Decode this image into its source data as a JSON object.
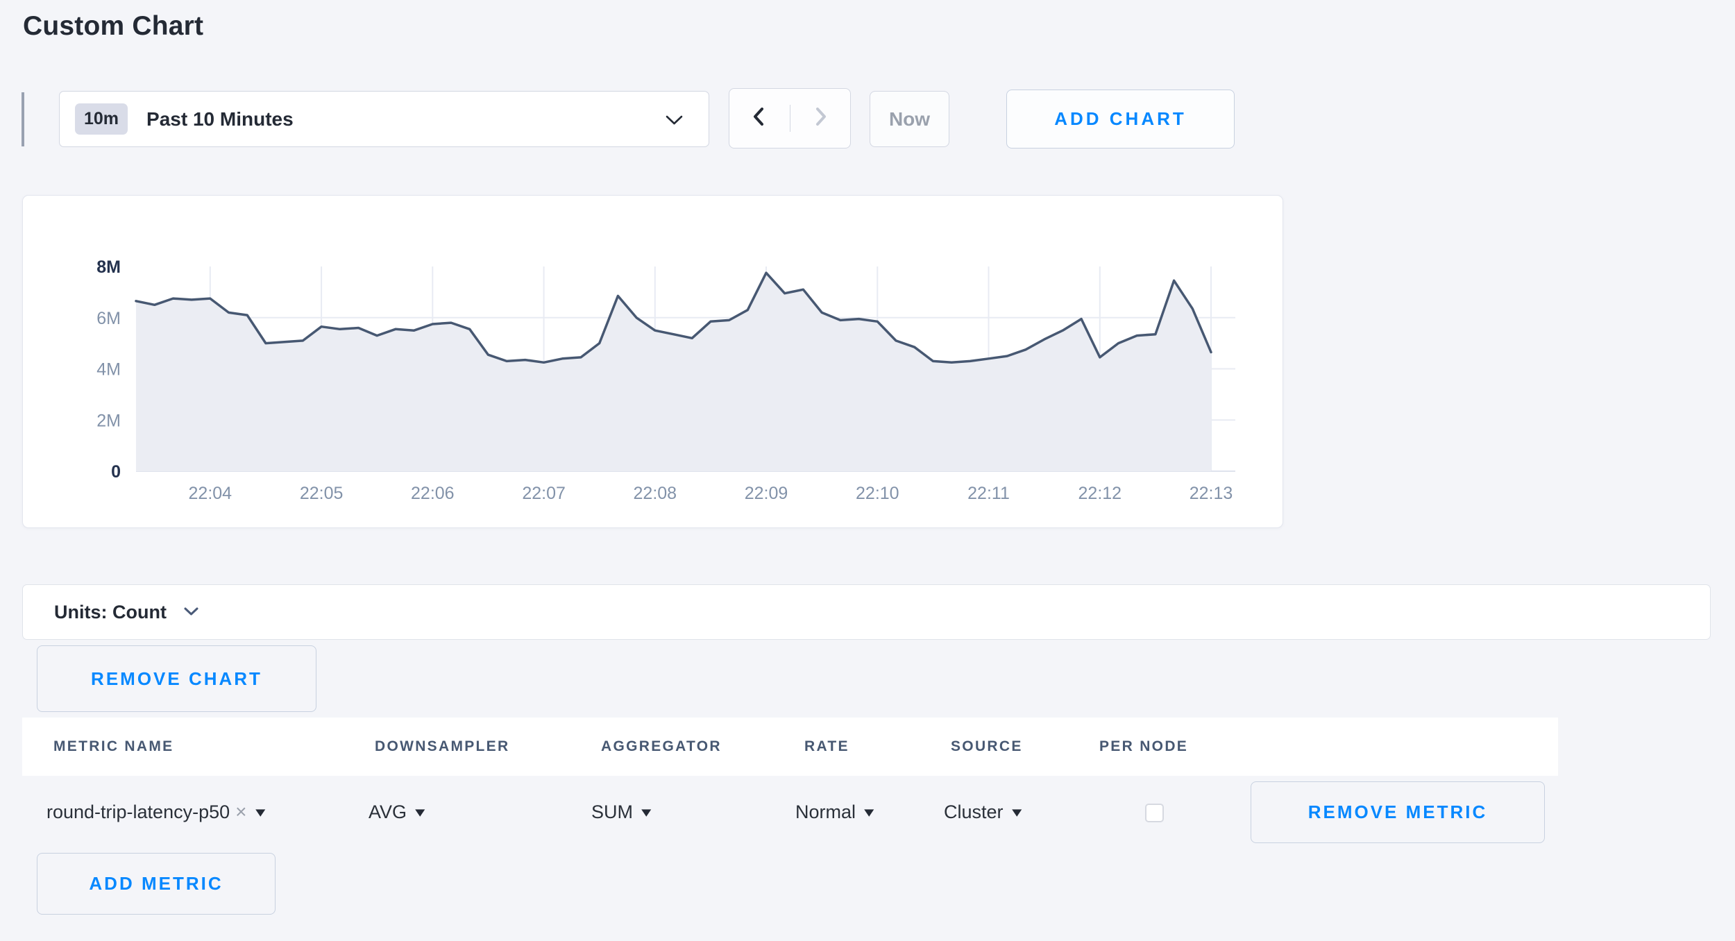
{
  "page": {
    "title": "Custom Chart",
    "background": "#f4f5f9",
    "accent_blue": "#0788ff"
  },
  "toolbar": {
    "time_scale": {
      "badge": "10m",
      "label": "Past 10 Minutes"
    },
    "now_label": "Now",
    "add_chart_label": "ADD CHART"
  },
  "units_bar": {
    "label": "Units: Count"
  },
  "chart_actions": {
    "remove_chart_label": "REMOVE CHART",
    "add_metric_label": "ADD METRIC"
  },
  "chart_data": {
    "type": "area",
    "title": "",
    "ylabel": "count",
    "ylim_millions": [
      0,
      8
    ],
    "grid": true,
    "x_domain_seconds_after_22h": [
      200,
      780
    ],
    "x_interval_seconds": 10,
    "x_ticks": [
      {
        "label": "22:04",
        "t": 240
      },
      {
        "label": "22:05",
        "t": 300
      },
      {
        "label": "22:06",
        "t": 360
      },
      {
        "label": "22:07",
        "t": 420
      },
      {
        "label": "22:08",
        "t": 480
      },
      {
        "label": "22:09",
        "t": 540
      },
      {
        "label": "22:10",
        "t": 600
      },
      {
        "label": "22:11",
        "t": 660
      },
      {
        "label": "22:12",
        "t": 720
      },
      {
        "label": "22:13",
        "t": 780
      }
    ],
    "y_ticks": [
      {
        "label": "0",
        "m": 0,
        "em": true
      },
      {
        "label": "2M",
        "m": 2
      },
      {
        "label": "4M",
        "m": 4
      },
      {
        "label": "6M",
        "m": 6
      },
      {
        "label": "8M",
        "m": 8,
        "em": true
      }
    ],
    "series": [
      {
        "name": "round-trip-latency-p50",
        "values_millions": [
          6.65,
          6.5,
          6.75,
          6.7,
          6.75,
          6.2,
          6.1,
          5.0,
          5.05,
          5.1,
          5.65,
          5.55,
          5.6,
          5.3,
          5.55,
          5.5,
          5.75,
          5.8,
          5.55,
          4.55,
          4.3,
          4.35,
          4.25,
          4.4,
          4.45,
          5.0,
          6.85,
          6.0,
          5.5,
          5.35,
          5.2,
          5.85,
          5.9,
          6.3,
          7.75,
          6.95,
          7.1,
          6.2,
          5.9,
          5.95,
          5.85,
          5.1,
          4.85,
          4.3,
          4.25,
          4.3,
          4.4,
          4.5,
          4.75,
          5.15,
          5.5,
          5.95,
          4.45,
          5.0,
          5.3,
          5.35,
          7.45,
          6.35,
          4.65
        ]
      }
    ],
    "colors": {
      "line": "#475872",
      "fill": "#ebedf3",
      "grid": "#e8ebf3"
    }
  },
  "metrics_table": {
    "columns": [
      "METRIC NAME",
      "DOWNSAMPLER",
      "AGGREGATOR",
      "RATE",
      "SOURCE",
      "PER NODE"
    ],
    "rows": [
      {
        "metric_name": "round-trip-latency-p50",
        "downsampler": "AVG",
        "aggregator": "SUM",
        "rate": "Normal",
        "source": "Cluster",
        "per_node_checked": false,
        "remove_label": "REMOVE METRIC"
      }
    ]
  },
  "icons": {
    "caret_down": "▾",
    "remove_tag": "×"
  }
}
